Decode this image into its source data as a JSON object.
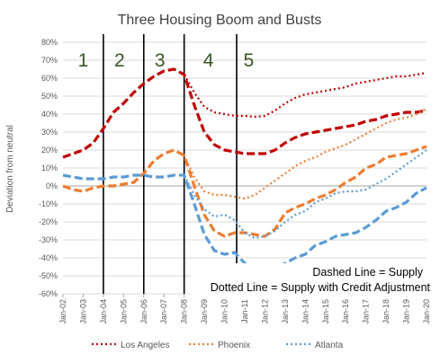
{
  "chart_data": {
    "type": "line",
    "title": "Three Housing Boom and Busts",
    "ylabel": "Deviation from neutral",
    "xlabel": "",
    "ylim": [
      -60,
      80
    ],
    "y_ticks": [
      -60,
      -50,
      -40,
      -30,
      -20,
      -10,
      0,
      10,
      20,
      30,
      40,
      50,
      60,
      70,
      80
    ],
    "y_tick_labels": [
      "-60%",
      "-50%",
      "-40%",
      "-30%",
      "-20%",
      "-10%",
      "0%",
      "10%",
      "20%",
      "30%",
      "40%",
      "50%",
      "60%",
      "70%",
      "80%"
    ],
    "x_tick_labels": [
      "Jan-02",
      "Jan-03",
      "Jan-04",
      "Jan-05",
      "Jan-06",
      "Jan-07",
      "Jan-08",
      "Jan-09",
      "Jan-10",
      "Jan-11",
      "Jan-12",
      "Jan-13",
      "Jan-14",
      "Jan-15",
      "Jan-16",
      "Jan-17",
      "Jan-18",
      "Jan-19",
      "Jan-20"
    ],
    "xlim": [
      2002,
      2020
    ],
    "period_dividers": [
      2004,
      2006,
      2008,
      2010.6
    ],
    "period_labels": [
      {
        "text": "1",
        "x": 2003.0
      },
      {
        "text": "2",
        "x": 2004.8
      },
      {
        "text": "3",
        "x": 2006.8
      },
      {
        "text": "4",
        "x": 2009.2
      },
      {
        "text": "5",
        "x": 2011.2
      }
    ],
    "annotations": [
      "Dashed Line = Supply",
      "Dotted Line = Supply with Credit Adjustment"
    ],
    "grid": true,
    "legend_position": "bottom",
    "series": [
      {
        "name": "Los Angeles",
        "color": "#C00000",
        "dash": "dashed",
        "legend": false,
        "x": [
          2002,
          2003,
          2003.5,
          2004,
          2004.5,
          2005,
          2005.5,
          2006,
          2006.5,
          2007,
          2007.5,
          2008,
          2008.5,
          2009,
          2009.5,
          2010,
          2010.5,
          2011,
          2011.5,
          2012,
          2012.5,
          2013,
          2013.5,
          2014,
          2014.5,
          2015,
          2015.5,
          2016,
          2016.5,
          2017,
          2017.5,
          2018,
          2018.5,
          2019,
          2019.5,
          2020
        ],
        "y": [
          16,
          20,
          24,
          32,
          41,
          46,
          52,
          57,
          61,
          64,
          65,
          62,
          45,
          30,
          23,
          20,
          19,
          18,
          18,
          18,
          20,
          24,
          27,
          29,
          30,
          31,
          32,
          33,
          34,
          36,
          37,
          39,
          40,
          41,
          41,
          42
        ]
      },
      {
        "name": "Los Angeles",
        "color": "#C00000",
        "dash": "dotted",
        "legend": true,
        "x": [
          2008,
          2008.5,
          2009,
          2009.5,
          2010,
          2010.5,
          2011,
          2011.5,
          2012,
          2012.5,
          2013,
          2013.5,
          2014,
          2014.5,
          2015,
          2015.5,
          2016,
          2016.5,
          2017,
          2017.5,
          2018,
          2018.5,
          2019,
          2019.5,
          2020
        ],
        "y": [
          62,
          52,
          44,
          41,
          40,
          39,
          39,
          38.5,
          39,
          42,
          46,
          49,
          51,
          52,
          53,
          54,
          55,
          57,
          58,
          59,
          60,
          61,
          61,
          62,
          63
        ]
      },
      {
        "name": "Phoenix",
        "color": "#ED7D31",
        "dash": "dashed",
        "legend": false,
        "x": [
          2002,
          2002.5,
          2003,
          2003.5,
          2004,
          2004.5,
          2005,
          2005.5,
          2006,
          2006.5,
          2007,
          2007.5,
          2008,
          2008.5,
          2009,
          2009.5,
          2010,
          2010.5,
          2011,
          2011.5,
          2012,
          2012.5,
          2013,
          2013.5,
          2014,
          2014.5,
          2015,
          2015.5,
          2016,
          2016.5,
          2017,
          2017.5,
          2018,
          2018.5,
          2019,
          2019.5,
          2020
        ],
        "y": [
          0,
          -2,
          -3,
          -1,
          0,
          0,
          1,
          2,
          7,
          14,
          18,
          20,
          17,
          0,
          -16,
          -25,
          -28,
          -26,
          -26,
          -27,
          -28,
          -24,
          -15,
          -12,
          -10,
          -7,
          -5,
          -2,
          2,
          5,
          10,
          12,
          16,
          17,
          18,
          20,
          22
        ]
      },
      {
        "name": "Phoenix",
        "color": "#ED7D31",
        "dash": "dotted",
        "legend": true,
        "x": [
          2008,
          2008.5,
          2009,
          2009.5,
          2010,
          2010.5,
          2011,
          2011.5,
          2012,
          2012.5,
          2013,
          2013.5,
          2014,
          2014.5,
          2015,
          2015.5,
          2016,
          2016.5,
          2017,
          2017.5,
          2018,
          2018.5,
          2019,
          2019.5,
          2020
        ],
        "y": [
          17,
          5,
          -3,
          -5,
          -5,
          -6,
          -7,
          -5,
          -1,
          3,
          7,
          11,
          14,
          16,
          19,
          21,
          23,
          26,
          29,
          32,
          35,
          37,
          38,
          40,
          43
        ]
      },
      {
        "name": "Atlanta",
        "color": "#5B9BD5",
        "dash": "dashed",
        "legend": false,
        "x": [
          2002,
          2002.5,
          2003,
          2003.5,
          2004,
          2004.5,
          2005,
          2005.5,
          2006,
          2006.5,
          2007,
          2007.5,
          2008,
          2008.5,
          2009,
          2009.5,
          2010,
          2010.5,
          2011,
          2011.5,
          2012,
          2012.5,
          2013,
          2013.5,
          2014,
          2014.5,
          2015,
          2015.5,
          2016,
          2016.5,
          2017,
          2017.5,
          2018,
          2018.5,
          2019,
          2019.5,
          2020
        ],
        "y": [
          6,
          5,
          4,
          4,
          4,
          5,
          5,
          6,
          6,
          5,
          5,
          6,
          6,
          -10,
          -27,
          -36,
          -38,
          -37,
          -43,
          -48,
          -50,
          -47,
          -43,
          -40,
          -38,
          -33,
          -31,
          -28,
          -27,
          -26,
          -23,
          -19,
          -14,
          -12,
          -9,
          -4,
          -1
        ]
      },
      {
        "name": "Atlanta",
        "color": "#5B9BD5",
        "dash": "dotted",
        "legend": true,
        "x": [
          2008,
          2008.5,
          2009,
          2009.5,
          2010,
          2010.5,
          2011,
          2011.5,
          2012,
          2012.5,
          2013,
          2013.5,
          2014,
          2014.5,
          2015,
          2015.5,
          2016,
          2016.5,
          2017,
          2017.5,
          2018,
          2018.5,
          2019,
          2019.5,
          2020
        ],
        "y": [
          6,
          -5,
          -13,
          -17,
          -16,
          -19,
          -26,
          -29,
          -28,
          -25,
          -20,
          -16,
          -14,
          -9,
          -7,
          -4,
          -3,
          -3,
          -2,
          1,
          4,
          8,
          12,
          16,
          20
        ]
      }
    ]
  }
}
